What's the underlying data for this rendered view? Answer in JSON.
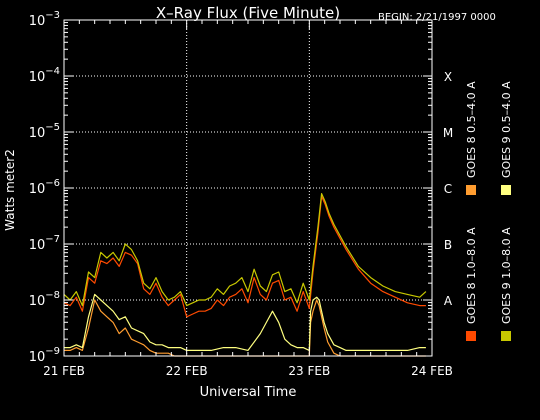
{
  "chart_data": {
    "type": "line",
    "title": "X–Ray Flux (Five Minute)",
    "begin": "BEGIN: 2/21/1997 0000",
    "xlabel": "Universal Time",
    "ylabel": "Watts meter2",
    "y_scale": "log",
    "ylim_exp": [
      -9,
      -3
    ],
    "y_ticks": [
      {
        "base": "10",
        "exp": "−9",
        "value": -9
      },
      {
        "base": "10",
        "exp": "−8",
        "value": -8
      },
      {
        "base": "10",
        "exp": "−7",
        "value": -7
      },
      {
        "base": "10",
        "exp": "−6",
        "value": -6
      },
      {
        "base": "10",
        "exp": "−5",
        "value": -5
      },
      {
        "base": "10",
        "exp": "−4",
        "value": -4
      },
      {
        "base": "10",
        "exp": "−3",
        "value": -3
      }
    ],
    "x_ticks": [
      {
        "label": "21 FEB",
        "day": 0
      },
      {
        "label": "22 FEB",
        "day": 1
      },
      {
        "label": "23 FEB",
        "day": 2
      },
      {
        "label": "24 FEB",
        "day": 3
      }
    ],
    "xlim_days": [
      0,
      3
    ],
    "flare_classes": [
      {
        "label": "A",
        "value": -8
      },
      {
        "label": "B",
        "value": -7
      },
      {
        "label": "C",
        "value": -6
      },
      {
        "label": "M",
        "value": -5
      },
      {
        "label": "X",
        "value": -4
      }
    ],
    "grid": true,
    "legend_position": "right",
    "series": [
      {
        "name": "GOES 8  1.0–8.0 A",
        "color": "#ff4a00",
        "x": [
          0,
          0.05,
          0.1,
          0.15,
          0.2,
          0.25,
          0.3,
          0.35,
          0.4,
          0.45,
          0.5,
          0.55,
          0.6,
          0.65,
          0.7,
          0.75,
          0.8,
          0.85,
          0.9,
          0.95,
          1.0,
          1.05,
          1.1,
          1.15,
          1.2,
          1.25,
          1.3,
          1.35,
          1.4,
          1.45,
          1.5,
          1.55,
          1.6,
          1.65,
          1.7,
          1.75,
          1.8,
          1.85,
          1.9,
          1.95,
          2.0,
          2.03,
          2.07,
          2.1,
          2.13,
          2.16,
          2.2,
          2.3,
          2.4,
          2.5,
          2.6,
          2.7,
          2.8,
          2.9,
          2.95
        ],
        "log_flux": [
          -8.05,
          -8.1,
          -7.95,
          -8.2,
          -7.6,
          -7.7,
          -7.3,
          -7.35,
          -7.25,
          -7.4,
          -7.15,
          -7.2,
          -7.35,
          -7.8,
          -7.9,
          -7.7,
          -7.95,
          -8.1,
          -8.0,
          -7.9,
          -8.3,
          -8.25,
          -8.2,
          -8.2,
          -8.15,
          -8.0,
          -8.1,
          -7.95,
          -7.9,
          -7.8,
          -8.05,
          -7.6,
          -7.9,
          -8.0,
          -7.7,
          -7.65,
          -8.0,
          -7.95,
          -8.2,
          -7.85,
          -8.15,
          -7.5,
          -6.8,
          -6.15,
          -6.3,
          -6.5,
          -6.7,
          -7.1,
          -7.45,
          -7.7,
          -7.85,
          -7.95,
          -8.05,
          -8.1,
          -8.1
        ]
      },
      {
        "name": "GOES 8  0.5–4.0 A",
        "color": "#ff9d30",
        "x": [
          0,
          0.05,
          0.1,
          0.15,
          0.2,
          0.25,
          0.3,
          0.35,
          0.4,
          0.45,
          0.5,
          0.55,
          0.6,
          0.65,
          0.7,
          0.75,
          0.8,
          0.85,
          0.9,
          1.0,
          1.05,
          1.1,
          1.2,
          1.3,
          1.4,
          1.5,
          1.6,
          1.7,
          1.8,
          1.9,
          2.0,
          2.01,
          2.03,
          2.06,
          2.08,
          2.1,
          2.12,
          2.15,
          2.2,
          2.25,
          2.3,
          2.4,
          2.5,
          2.6,
          2.7,
          2.8,
          2.9,
          2.95
        ],
        "log_flux": [
          -8.9,
          -8.9,
          -8.85,
          -8.9,
          -8.5,
          -8.0,
          -8.2,
          -8.3,
          -8.4,
          -8.6,
          -8.5,
          -8.7,
          -8.75,
          -8.8,
          -8.9,
          -8.95,
          -8.95,
          -8.95,
          -9.0,
          -9.0,
          -9.0,
          -9.0,
          -9.0,
          -9.0,
          -9.0,
          -9.0,
          -9.0,
          -9.0,
          -9.0,
          -9.0,
          -9.0,
          -8.4,
          -8.2,
          -8.0,
          -8.1,
          -8.3,
          -8.5,
          -8.75,
          -8.95,
          -9.0,
          -9.0,
          -9.0,
          -9.0,
          -9.0,
          -9.0,
          -9.0,
          -9.0,
          -9.0
        ]
      },
      {
        "name": "GOES 9  1.0–8.0 A",
        "color": "#c8c800",
        "x": [
          0,
          0.05,
          0.1,
          0.15,
          0.2,
          0.25,
          0.3,
          0.35,
          0.4,
          0.45,
          0.5,
          0.55,
          0.6,
          0.65,
          0.7,
          0.75,
          0.8,
          0.85,
          0.9,
          0.95,
          1.0,
          1.05,
          1.1,
          1.15,
          1.2,
          1.25,
          1.3,
          1.35,
          1.4,
          1.45,
          1.5,
          1.55,
          1.6,
          1.65,
          1.7,
          1.75,
          1.8,
          1.85,
          1.9,
          1.95,
          2.0,
          2.03,
          2.07,
          2.1,
          2.13,
          2.16,
          2.2,
          2.3,
          2.4,
          2.5,
          2.6,
          2.7,
          2.8,
          2.9,
          2.95
        ],
        "log_flux": [
          -7.9,
          -8.0,
          -7.85,
          -8.1,
          -7.5,
          -7.6,
          -7.15,
          -7.25,
          -7.15,
          -7.3,
          -7.0,
          -7.1,
          -7.3,
          -7.7,
          -7.8,
          -7.6,
          -7.85,
          -8.0,
          -7.95,
          -7.85,
          -8.1,
          -8.05,
          -8.0,
          -8.0,
          -7.95,
          -7.8,
          -7.9,
          -7.75,
          -7.7,
          -7.6,
          -7.85,
          -7.45,
          -7.75,
          -7.85,
          -7.55,
          -7.5,
          -7.85,
          -7.8,
          -8.05,
          -7.7,
          -8.0,
          -7.4,
          -6.7,
          -6.1,
          -6.25,
          -6.45,
          -6.65,
          -7.05,
          -7.4,
          -7.6,
          -7.75,
          -7.85,
          -7.9,
          -7.95,
          -7.85
        ]
      },
      {
        "name": "GOES 9  0.5–4.0 A",
        "color": "#ffff80",
        "x": [
          0,
          0.05,
          0.1,
          0.15,
          0.2,
          0.25,
          0.3,
          0.35,
          0.4,
          0.45,
          0.5,
          0.55,
          0.6,
          0.65,
          0.7,
          0.75,
          0.8,
          0.85,
          0.9,
          0.95,
          1.0,
          1.1,
          1.2,
          1.3,
          1.4,
          1.5,
          1.6,
          1.65,
          1.7,
          1.75,
          1.8,
          1.85,
          1.9,
          1.95,
          2.0,
          2.01,
          2.03,
          2.06,
          2.08,
          2.1,
          2.12,
          2.15,
          2.2,
          2.25,
          2.3,
          2.35,
          2.4,
          2.5,
          2.6,
          2.7,
          2.8,
          2.9,
          2.95
        ],
        "log_flux": [
          -8.85,
          -8.85,
          -8.8,
          -8.85,
          -8.3,
          -7.9,
          -8.0,
          -8.1,
          -8.2,
          -8.35,
          -8.3,
          -8.5,
          -8.55,
          -8.6,
          -8.75,
          -8.8,
          -8.8,
          -8.85,
          -8.85,
          -8.85,
          -8.9,
          -8.9,
          -8.9,
          -8.85,
          -8.85,
          -8.9,
          -8.6,
          -8.4,
          -8.2,
          -8.4,
          -8.7,
          -8.8,
          -8.85,
          -8.85,
          -8.9,
          -8.2,
          -8.0,
          -7.95,
          -8.0,
          -8.2,
          -8.4,
          -8.6,
          -8.8,
          -8.85,
          -8.9,
          -8.9,
          -8.9,
          -8.9,
          -8.9,
          -8.9,
          -8.9,
          -8.85,
          -8.85
        ]
      }
    ]
  }
}
